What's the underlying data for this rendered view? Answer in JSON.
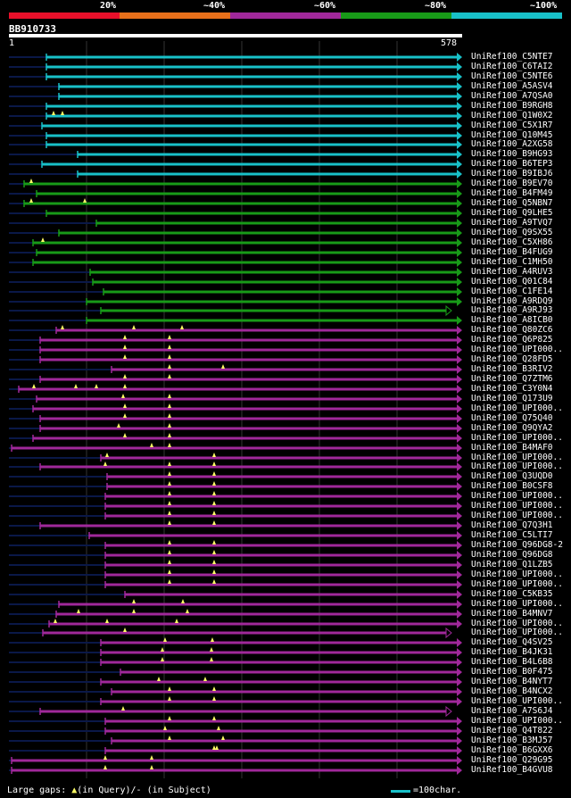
{
  "legend": {
    "labels": [
      "20%",
      "~40%",
      "~60%",
      "~80%",
      "~100%"
    ],
    "colors": [
      "#e8102a",
      "#e8701a",
      "#a0289a",
      "#189a18",
      "#18c0c8"
    ]
  },
  "query": {
    "name": "BB910733",
    "start": "1",
    "end": "578"
  },
  "hits": [
    {
      "name": "UniRef100_C5NTE7",
      "color": "cyan",
      "start": 52,
      "trunc": false,
      "gaps": []
    },
    {
      "name": "UniRef100_C6TAI2",
      "color": "cyan",
      "start": 52,
      "trunc": false,
      "gaps": []
    },
    {
      "name": "UniRef100_C5NTE6",
      "color": "cyan",
      "start": 52,
      "trunc": false,
      "gaps": []
    },
    {
      "name": "UniRef100_A5ASV4",
      "color": "cyan",
      "start": 66,
      "trunc": false,
      "gaps": []
    },
    {
      "name": "UniRef100_A7QSA0",
      "color": "cyan",
      "start": 66,
      "trunc": false,
      "gaps": []
    },
    {
      "name": "UniRef100_B9RGH8",
      "color": "cyan",
      "start": 52,
      "trunc": false,
      "gaps": []
    },
    {
      "name": "UniRef100_Q1W0X2",
      "color": "cyan",
      "start": 52,
      "trunc": false,
      "gaps": [
        60,
        70
      ]
    },
    {
      "name": "UniRef100_C5X1R7",
      "color": "cyan",
      "start": 47,
      "trunc": false,
      "gaps": []
    },
    {
      "name": "UniRef100_Q10M45",
      "color": "cyan",
      "start": 52,
      "trunc": false,
      "gaps": []
    },
    {
      "name": "UniRef100_A2XG58",
      "color": "cyan",
      "start": 52,
      "trunc": false,
      "gaps": []
    },
    {
      "name": "UniRef100_B9HG93",
      "color": "cyan",
      "start": 87,
      "trunc": false,
      "gaps": []
    },
    {
      "name": "UniRef100_B6TEP3",
      "color": "cyan",
      "start": 47,
      "trunc": false,
      "gaps": []
    },
    {
      "name": "UniRef100_B9IBJ6",
      "color": "cyan",
      "start": 87,
      "trunc": false,
      "gaps": []
    },
    {
      "name": "UniRef100_B9EV70",
      "color": "green",
      "start": 27,
      "trunc": false,
      "gaps": [
        35
      ]
    },
    {
      "name": "UniRef100_B4FM49",
      "color": "green",
      "start": 41,
      "trunc": false,
      "gaps": []
    },
    {
      "name": "UniRef100_Q5NBN7",
      "color": "green",
      "start": 27,
      "trunc": false,
      "gaps": [
        35,
        95
      ]
    },
    {
      "name": "UniRef100_Q9LHE5",
      "color": "green",
      "start": 52,
      "trunc": false,
      "gaps": []
    },
    {
      "name": "UniRef100_A9TVQ7",
      "color": "green",
      "start": 108,
      "trunc": false,
      "gaps": []
    },
    {
      "name": "UniRef100_Q9SX55",
      "color": "green",
      "start": 66,
      "trunc": false,
      "gaps": []
    },
    {
      "name": "UniRef100_C5XH86",
      "color": "green",
      "start": 37,
      "trunc": false,
      "gaps": [
        48
      ]
    },
    {
      "name": "UniRef100_B4FUG9",
      "color": "green",
      "start": 41,
      "trunc": false,
      "gaps": []
    },
    {
      "name": "UniRef100_C1MH50",
      "color": "green",
      "start": 37,
      "trunc": false,
      "gaps": []
    },
    {
      "name": "UniRef100_A4RUV3",
      "color": "green",
      "start": 101,
      "trunc": false,
      "gaps": []
    },
    {
      "name": "UniRef100_Q01C84",
      "color": "green",
      "start": 104,
      "trunc": false,
      "gaps": []
    },
    {
      "name": "UniRef100_C1FE14",
      "color": "green",
      "start": 116,
      "trunc": false,
      "gaps": []
    },
    {
      "name": "UniRef100_A9RDQ9",
      "color": "green",
      "start": 97,
      "trunc": false,
      "gaps": []
    },
    {
      "name": "UniRef100_A9RJ93",
      "color": "green",
      "start": 113,
      "trunc": true,
      "gaps": []
    },
    {
      "name": "UniRef100_A8ICB0",
      "color": "green",
      "start": 97,
      "trunc": false,
      "gaps": []
    },
    {
      "name": "UniRef100_Q80ZC6",
      "color": "purple",
      "start": 63,
      "trunc": false,
      "gaps": [
        70,
        150,
        204
      ]
    },
    {
      "name": "UniRef100_Q6P825",
      "color": "purple",
      "start": 45,
      "trunc": false,
      "gaps": [
        140,
        190
      ]
    },
    {
      "name": "UniRef100_UPI000..",
      "color": "purple",
      "start": 45,
      "trunc": false,
      "gaps": [
        140,
        190
      ]
    },
    {
      "name": "UniRef100_Q28FD5",
      "color": "purple",
      "start": 45,
      "trunc": false,
      "gaps": [
        140,
        190
      ]
    },
    {
      "name": "UniRef100_B3RIV2",
      "color": "purple",
      "start": 125,
      "trunc": false,
      "gaps": [
        190,
        250
      ]
    },
    {
      "name": "UniRef100_Q7ZTM6",
      "color": "purple",
      "start": 45,
      "trunc": false,
      "gaps": [
        140,
        190
      ]
    },
    {
      "name": "UniRef100_C3Y0N4",
      "color": "purple",
      "start": 21,
      "trunc": false,
      "gaps": [
        38,
        85,
        108,
        140
      ]
    },
    {
      "name": "UniRef100_Q173U9",
      "color": "purple",
      "start": 41,
      "trunc": false,
      "gaps": [
        138,
        190
      ]
    },
    {
      "name": "UniRef100_UPI000..",
      "color": "purple",
      "start": 37,
      "trunc": false,
      "gaps": [
        140,
        190
      ]
    },
    {
      "name": "UniRef100_Q75Q40",
      "color": "purple",
      "start": 45,
      "trunc": false,
      "gaps": [
        140,
        190
      ]
    },
    {
      "name": "UniRef100_Q9QYA2",
      "color": "purple",
      "start": 45,
      "trunc": false,
      "gaps": [
        133,
        190
      ]
    },
    {
      "name": "UniRef100_UPI000..",
      "color": "purple",
      "start": 37,
      "trunc": false,
      "gaps": [
        140,
        190
      ]
    },
    {
      "name": "UniRef100_B4MAF0",
      "color": "purple",
      "start": 13,
      "trunc": false,
      "gaps": [
        170,
        190
      ]
    },
    {
      "name": "UniRef100_UPI000..",
      "color": "purple",
      "start": 113,
      "trunc": false,
      "gaps": [
        120,
        240
      ]
    },
    {
      "name": "UniRef100_UPI000..",
      "color": "purple",
      "start": 45,
      "trunc": false,
      "gaps": [
        118,
        190,
        240
      ]
    },
    {
      "name": "UniRef100_Q3UQD0",
      "color": "purple",
      "start": 120,
      "trunc": false,
      "gaps": [
        190,
        240
      ]
    },
    {
      "name": "UniRef100_B0CSF8",
      "color": "purple",
      "start": 120,
      "trunc": false,
      "gaps": [
        190,
        240
      ]
    },
    {
      "name": "UniRef100_UPI000..",
      "color": "purple",
      "start": 118,
      "trunc": false,
      "gaps": [
        190,
        240
      ]
    },
    {
      "name": "UniRef100_UPI000..",
      "color": "purple",
      "start": 118,
      "trunc": false,
      "gaps": [
        190,
        240
      ]
    },
    {
      "name": "UniRef100_UPI000..",
      "color": "purple",
      "start": 118,
      "trunc": false,
      "gaps": [
        190,
        240
      ]
    },
    {
      "name": "UniRef100_Q7Q3H1",
      "color": "purple",
      "start": 45,
      "trunc": false,
      "gaps": [
        190,
        240
      ]
    },
    {
      "name": "UniRef100_C5LTI7",
      "color": "purple",
      "start": 100,
      "trunc": false,
      "gaps": []
    },
    {
      "name": "UniRef100_Q96DG8-2",
      "color": "purple",
      "start": 118,
      "trunc": false,
      "gaps": [
        190,
        240
      ]
    },
    {
      "name": "UniRef100_Q96DG8",
      "color": "purple",
      "start": 118,
      "trunc": false,
      "gaps": [
        190,
        240
      ]
    },
    {
      "name": "UniRef100_Q1LZB5",
      "color": "purple",
      "start": 118,
      "trunc": false,
      "gaps": [
        190,
        240
      ]
    },
    {
      "name": "UniRef100_UPI000..",
      "color": "purple",
      "start": 118,
      "trunc": false,
      "gaps": [
        190,
        240
      ]
    },
    {
      "name": "UniRef100_UPI000..",
      "color": "purple",
      "start": 118,
      "trunc": false,
      "gaps": [
        190,
        240
      ]
    },
    {
      "name": "UniRef100_C5KB35",
      "color": "purple",
      "start": 140,
      "trunc": false,
      "gaps": []
    },
    {
      "name": "UniRef100_UPI000..",
      "color": "purple",
      "start": 66,
      "trunc": false,
      "gaps": [
        150,
        205
      ]
    },
    {
      "name": "UniRef100_B4MNV7",
      "color": "purple",
      "start": 63,
      "trunc": false,
      "gaps": [
        88,
        150,
        210
      ]
    },
    {
      "name": "UniRef100_UPI000..",
      "color": "purple",
      "start": 55,
      "trunc": false,
      "gaps": [
        62,
        120,
        198
      ]
    },
    {
      "name": "UniRef100_UPI000..",
      "color": "purple",
      "start": 48,
      "trunc": true,
      "gaps": [
        140
      ]
    },
    {
      "name": "UniRef100_Q4SV25",
      "color": "purple",
      "start": 113,
      "trunc": false,
      "gaps": [
        185,
        238
      ]
    },
    {
      "name": "UniRef100_B4JK31",
      "color": "purple",
      "start": 113,
      "trunc": false,
      "gaps": [
        182,
        237
      ]
    },
    {
      "name": "UniRef100_B4L6B8",
      "color": "purple",
      "start": 113,
      "trunc": false,
      "gaps": [
        182,
        237
      ]
    },
    {
      "name": "UniRef100_B0F475",
      "color": "purple",
      "start": 135,
      "trunc": false,
      "gaps": []
    },
    {
      "name": "UniRef100_B4NYT7",
      "color": "purple",
      "start": 113,
      "trunc": false,
      "gaps": [
        178,
        230
      ]
    },
    {
      "name": "UniRef100_B4NCX2",
      "color": "purple",
      "start": 125,
      "trunc": false,
      "gaps": [
        190,
        240
      ]
    },
    {
      "name": "UniRef100_UPI000..",
      "color": "purple",
      "start": 113,
      "trunc": false,
      "gaps": [
        190,
        240
      ]
    },
    {
      "name": "UniRef100_A7S6J4",
      "color": "purple",
      "start": 45,
      "trunc": true,
      "gaps": [
        138
      ]
    },
    {
      "name": "UniRef100_UPI000..",
      "color": "purple",
      "start": 118,
      "trunc": false,
      "gaps": [
        190,
        240
      ]
    },
    {
      "name": "UniRef100_Q4T822",
      "color": "purple",
      "start": 118,
      "trunc": false,
      "gaps": [
        185,
        245
      ]
    },
    {
      "name": "UniRef100_B3MJ57",
      "color": "purple",
      "start": 125,
      "trunc": false,
      "gaps": [
        190,
        250
      ]
    },
    {
      "name": "UniRef100_B6GXX6",
      "color": "purple",
      "start": 118,
      "trunc": false,
      "gaps": [
        240,
        243
      ]
    },
    {
      "name": "UniRef100_Q29G95",
      "color": "purple",
      "start": 13,
      "trunc": false,
      "gaps": [
        118,
        170
      ]
    },
    {
      "name": "UniRef100_B4GVU8",
      "color": "purple",
      "start": 13,
      "trunc": false,
      "gaps": [
        118,
        170
      ]
    }
  ],
  "footer": {
    "gaps_prefix": "Large gaps: ",
    "gaps_query": "(in Query)/",
    "gaps_dash": "-",
    "gaps_subject": " (in Subject)",
    "scale_label": "=100char."
  },
  "colors": {
    "cyan": "#18c0c8",
    "green": "#189a18",
    "purple": "#a0289a",
    "tail": "#0a1848",
    "marker": "#ffff66",
    "grid": "#333333"
  }
}
